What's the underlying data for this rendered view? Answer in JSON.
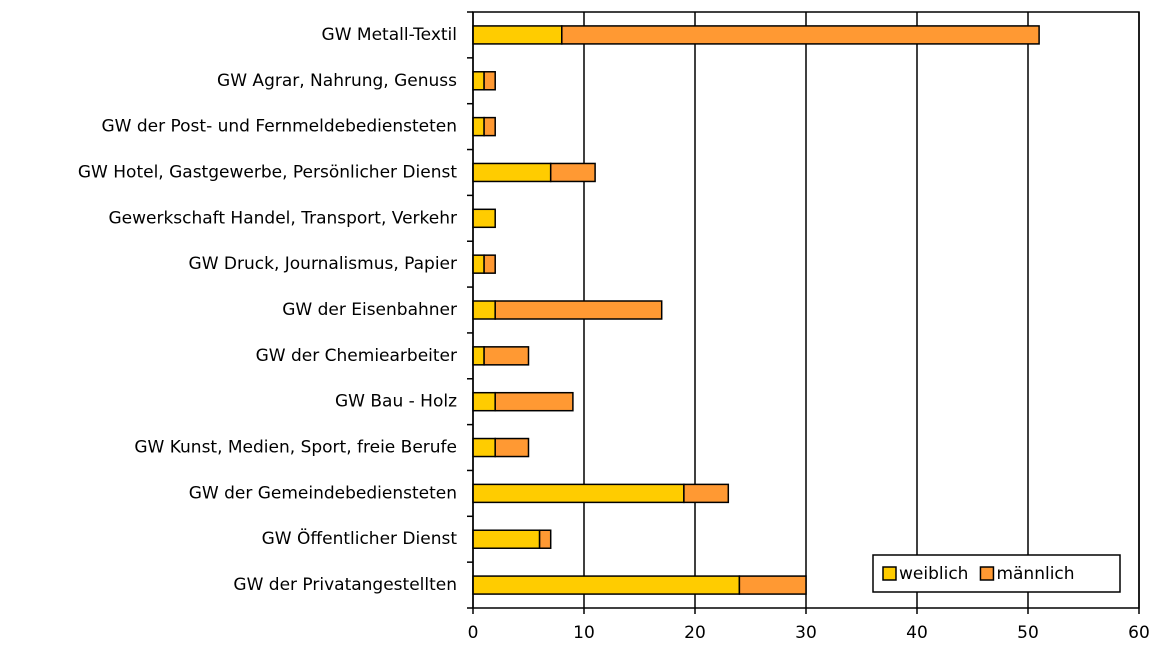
{
  "chart_data": {
    "type": "stacked-barh",
    "categories": [
      "GW Metall-Textil",
      "GW Agrar, Nahrung, Genuss",
      "GW der Post- und Fernmeldebediensteten",
      "GW Hotel, Gastgewerbe, Persönlicher Dienst",
      "Gewerkschaft Handel, Transport, Verkehr",
      "GW Druck, Journalismus, Papier",
      "GW der Eisenbahner",
      "GW der Chemiearbeiter",
      "GW Bau - Holz",
      "GW Kunst, Medien, Sport, freie Berufe",
      "GW der Gemeindebediensteten",
      "GW Öffentlicher Dienst",
      "GW der Privatangestellten"
    ],
    "series": [
      {
        "name": "weiblich",
        "color": "#ffcc00",
        "values": [
          8,
          1,
          1,
          7,
          2,
          1,
          2,
          1,
          2,
          2,
          19,
          6,
          24
        ]
      },
      {
        "name": "männlich",
        "color": "#ff9933",
        "values": [
          43,
          1,
          1,
          4,
          0,
          1,
          15,
          4,
          7,
          3,
          4,
          1,
          6
        ]
      }
    ],
    "xlim": [
      0,
      60
    ],
    "xticks": [
      0,
      10,
      20,
      30,
      40,
      50,
      60
    ],
    "grid": true,
    "legend": "lower right"
  }
}
